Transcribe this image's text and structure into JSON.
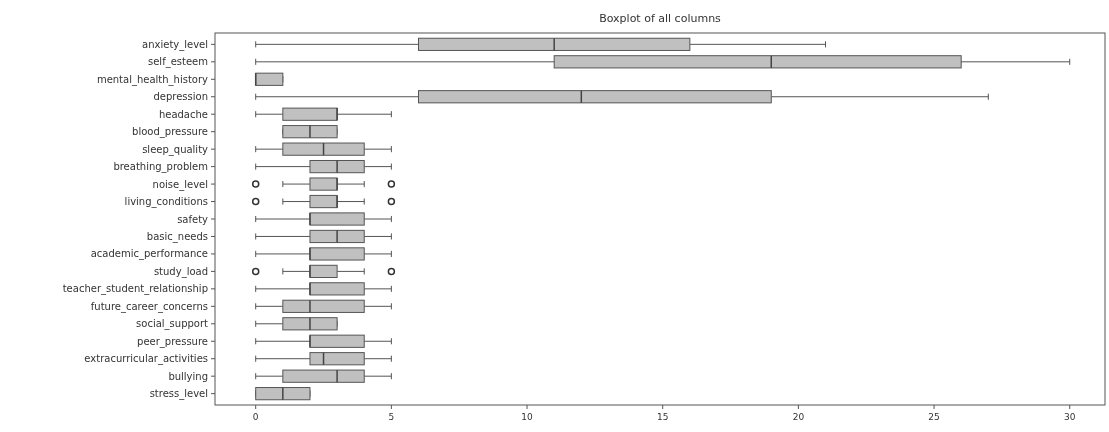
{
  "chart_data": {
    "type": "box",
    "title": "Boxplot of all columns",
    "orientation": "horizontal",
    "color": "#c0c0c0",
    "categories": [
      "anxiety_level",
      "self_esteem",
      "mental_health_history",
      "depression",
      "headache",
      "blood_pressure",
      "sleep_quality",
      "breathing_problem",
      "noise_level",
      "living_conditions",
      "safety",
      "basic_needs",
      "academic_performance",
      "study_load",
      "teacher_student_relationship",
      "future_career_concerns",
      "social_support",
      "peer_pressure",
      "extracurricular_activities",
      "bullying",
      "stress_level"
    ],
    "boxes": [
      {
        "low": 0,
        "q1": 6,
        "median": 11,
        "q3": 16,
        "high": 21
      },
      {
        "low": 0,
        "q1": 11,
        "median": 19,
        "q3": 26,
        "high": 30
      },
      {
        "low": 0,
        "q1": 0,
        "median": 0,
        "q3": 1,
        "high": 1
      },
      {
        "low": 0,
        "q1": 6,
        "median": 12,
        "q3": 19,
        "high": 27
      },
      {
        "low": 0,
        "q1": 1,
        "median": 3,
        "q3": 3,
        "high": 5
      },
      {
        "low": 1,
        "q1": 1,
        "median": 2,
        "q3": 3,
        "high": 3
      },
      {
        "low": 0,
        "q1": 1,
        "median": 2.5,
        "q3": 4,
        "high": 5
      },
      {
        "low": 0,
        "q1": 2,
        "median": 3,
        "q3": 4,
        "high": 5
      },
      {
        "low": 1,
        "q1": 2,
        "median": 3,
        "q3": 3,
        "high": 4,
        "outliers": [
          0,
          5
        ]
      },
      {
        "low": 1,
        "q1": 2,
        "median": 3,
        "q3": 3,
        "high": 4,
        "outliers": [
          0,
          5
        ]
      },
      {
        "low": 0,
        "q1": 2,
        "median": 2,
        "q3": 4,
        "high": 5
      },
      {
        "low": 0,
        "q1": 2,
        "median": 3,
        "q3": 4,
        "high": 5
      },
      {
        "low": 0,
        "q1": 2,
        "median": 2,
        "q3": 4,
        "high": 5
      },
      {
        "low": 1,
        "q1": 2,
        "median": 2,
        "q3": 3,
        "high": 4,
        "outliers": [
          0,
          5
        ]
      },
      {
        "low": 0,
        "q1": 2,
        "median": 2,
        "q3": 4,
        "high": 5
      },
      {
        "low": 0,
        "q1": 1,
        "median": 2,
        "q3": 4,
        "high": 5
      },
      {
        "low": 0,
        "q1": 1,
        "median": 2,
        "q3": 3,
        "high": 3
      },
      {
        "low": 0,
        "q1": 2,
        "median": 2,
        "q3": 4,
        "high": 5
      },
      {
        "low": 0,
        "q1": 2,
        "median": 2.5,
        "q3": 4,
        "high": 5
      },
      {
        "low": 0,
        "q1": 1,
        "median": 3,
        "q3": 4,
        "high": 5
      },
      {
        "low": 0,
        "q1": 0,
        "median": 1,
        "q3": 2,
        "high": 2
      }
    ],
    "xlim": [
      -1.5,
      31.3
    ],
    "xticks": [
      0,
      5,
      10,
      15,
      20,
      25,
      30
    ]
  }
}
